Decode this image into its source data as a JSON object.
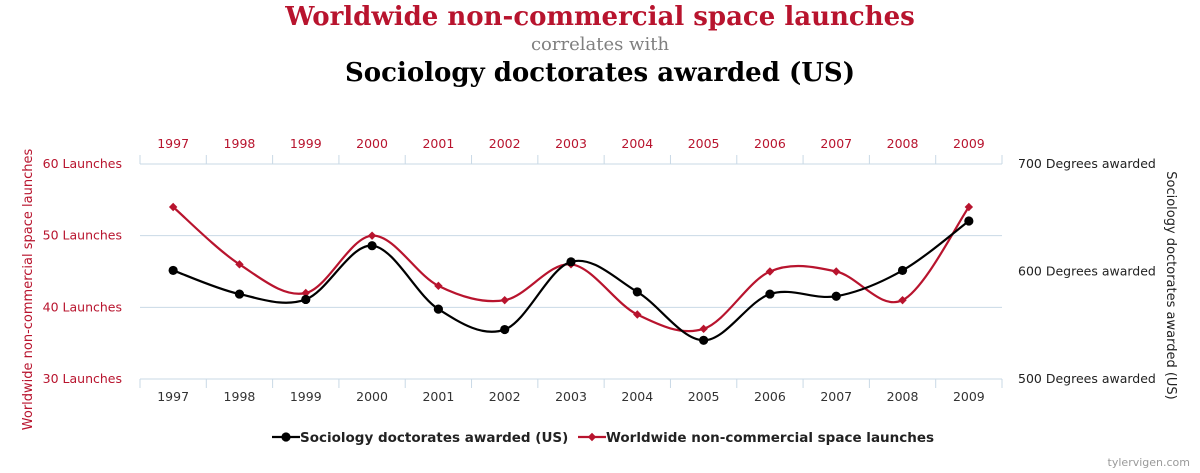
{
  "header": {
    "title_primary": "Worldwide non-commercial space launches",
    "connector": "correlates with",
    "title_secondary": "Sociology doctorates awarded (US)"
  },
  "credit": "tylervigen.com",
  "colors": {
    "launches": "#b8142e",
    "doctorates": "#000000",
    "grid": "#c9d9e6",
    "axis_text": "#333333"
  },
  "chart_data": {
    "type": "line",
    "x": [
      "1997",
      "1998",
      "1999",
      "2000",
      "2001",
      "2002",
      "2003",
      "2004",
      "2005",
      "2006",
      "2007",
      "2008",
      "2009"
    ],
    "series": [
      {
        "name": "Sociology doctorates awarded (US)",
        "axis": "right",
        "marker": "circle",
        "values": [
          601,
          579,
          574,
          624,
          565,
          546,
          609,
          581,
          536,
          579,
          577,
          601,
          647
        ]
      },
      {
        "name": "Worldwide non-commercial space launches",
        "axis": "left",
        "marker": "diamond",
        "values": [
          54,
          46,
          42,
          50,
          43,
          41,
          46,
          39,
          37,
          45,
          45,
          41,
          54
        ]
      }
    ],
    "left_axis": {
      "label": "Worldwide non-commercial space launches",
      "ylim": [
        30,
        60
      ],
      "ticks": [
        {
          "value": 60,
          "label": "60 Launches"
        },
        {
          "value": 50,
          "label": "50 Launches"
        },
        {
          "value": 40,
          "label": "40 Launches"
        },
        {
          "value": 30,
          "label": "30 Launches"
        }
      ]
    },
    "right_axis": {
      "label": "Sociology doctorates awarded (US)",
      "ylim": [
        500,
        700
      ],
      "ticks": [
        {
          "value": 700,
          "label": "700 Degrees awarded"
        },
        {
          "value": 600,
          "label": "600 Degrees awarded"
        },
        {
          "value": 500,
          "label": "500 Degrees awarded"
        }
      ]
    },
    "grid": true,
    "legend_position": "bottom"
  }
}
